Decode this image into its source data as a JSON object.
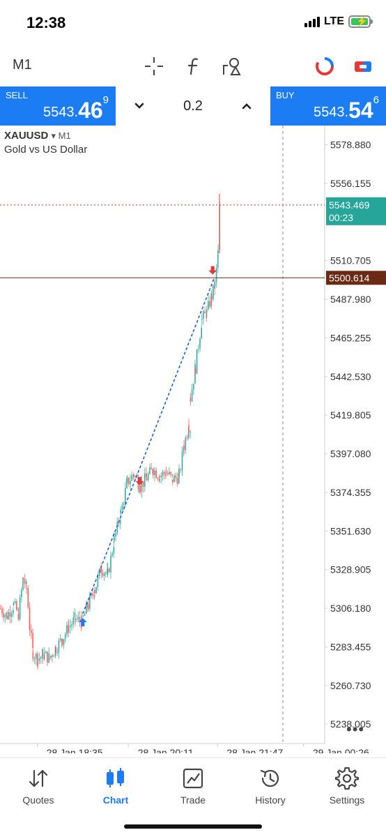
{
  "status_bar": {
    "time": "12:38",
    "network": "LTE"
  },
  "toolbar": {
    "timeframe": "M1",
    "icons": [
      "crosshair-icon",
      "function-icon",
      "objects-icon",
      "indicator-circle-icon",
      "trade-toggle-icon"
    ]
  },
  "trade": {
    "sell_label": "SELL",
    "sell_price_prefix": "5543.",
    "sell_price_big": "46",
    "sell_price_sup": "9",
    "buy_label": "BUY",
    "buy_price_prefix": "5543.",
    "buy_price_big": "54",
    "buy_price_sup": "6",
    "volume": "0.2",
    "volume_down": "⌄",
    "volume_up": "⌃",
    "color": "#1b7cf3"
  },
  "chart": {
    "symbol": "XAUUSD",
    "timeframe_marker": "▾ M1",
    "description": "Gold vs US Dollar",
    "more": "•••"
  },
  "chart_data": {
    "type": "candlestick",
    "ylim": [
      5226.6,
      5590.2
    ],
    "y_ticks": [
      "5578.880",
      "5556.155",
      "5510.705",
      "5487.980",
      "5465.255",
      "5442.530",
      "5419.805",
      "5397.080",
      "5374.355",
      "5351.630",
      "5328.905",
      "5306.180",
      "5283.455",
      "5260.730",
      "5238.005"
    ],
    "x_ticks": [
      "28 Jan 18:35",
      "28 Jan 20:11",
      "28 Jan 21:47",
      "29 Jan 00:26"
    ],
    "current_price": {
      "value": 5543.469,
      "label": "5543.469",
      "countdown": "00:23",
      "color": "#26a69a"
    },
    "horizontal_line": {
      "value": 5500.614,
      "label": "5500.614",
      "color": "#6b2a14"
    },
    "up_color": "#26a69a",
    "down_color": "#ef5350",
    "trend_line": {
      "from": [
        5303.0,
        0.255
      ],
      "to": [
        5500.6,
        0.66
      ]
    },
    "trade_arrows": [
      {
        "type": "buy",
        "x": 0.255,
        "value": 5298.0,
        "color": "#1b7cf3"
      },
      {
        "type": "sell",
        "x": 0.43,
        "value": 5381.0,
        "color": "#e53935"
      },
      {
        "type": "sell",
        "x": 0.655,
        "value": 5505.0,
        "color": "#e53935"
      }
    ],
    "price_path": [
      [
        0.0,
        5306
      ],
      [
        0.02,
        5302
      ],
      [
        0.04,
        5308
      ],
      [
        0.055,
        5303
      ],
      [
        0.07,
        5324
      ],
      [
        0.08,
        5318
      ],
      [
        0.09,
        5295
      ],
      [
        0.1,
        5280
      ],
      [
        0.115,
        5276
      ],
      [
        0.13,
        5279
      ],
      [
        0.15,
        5277
      ],
      [
        0.17,
        5283
      ],
      [
        0.19,
        5288
      ],
      [
        0.21,
        5295
      ],
      [
        0.23,
        5300
      ],
      [
        0.25,
        5298
      ],
      [
        0.27,
        5308
      ],
      [
        0.29,
        5317
      ],
      [
        0.31,
        5330
      ],
      [
        0.33,
        5326
      ],
      [
        0.35,
        5346
      ],
      [
        0.37,
        5362
      ],
      [
        0.39,
        5380
      ],
      [
        0.41,
        5385
      ],
      [
        0.43,
        5378
      ],
      [
        0.45,
        5383
      ],
      [
        0.47,
        5388
      ],
      [
        0.49,
        5384
      ],
      [
        0.51,
        5386
      ],
      [
        0.53,
        5382
      ],
      [
        0.55,
        5384
      ],
      [
        0.565,
        5402
      ],
      [
        0.58,
        5414
      ],
      [
        0.585,
        5412
      ]
    ],
    "price_path_2": [
      [
        0.585,
        5430
      ],
      [
        0.6,
        5448
      ],
      [
        0.62,
        5476
      ],
      [
        0.635,
        5480
      ],
      [
        0.65,
        5490
      ],
      [
        0.66,
        5496
      ],
      [
        0.67,
        5515
      ],
      [
        0.675,
        5543.5
      ]
    ]
  },
  "bottom_nav": [
    {
      "label": "Quotes",
      "icon": "arrows-updown-icon",
      "active": false
    },
    {
      "label": "Chart",
      "icon": "candles-icon",
      "active": true
    },
    {
      "label": "Trade",
      "icon": "trade-chart-icon",
      "active": false
    },
    {
      "label": "History",
      "icon": "history-clock-icon",
      "active": false
    },
    {
      "label": "Settings",
      "icon": "gear-icon",
      "active": false
    }
  ]
}
